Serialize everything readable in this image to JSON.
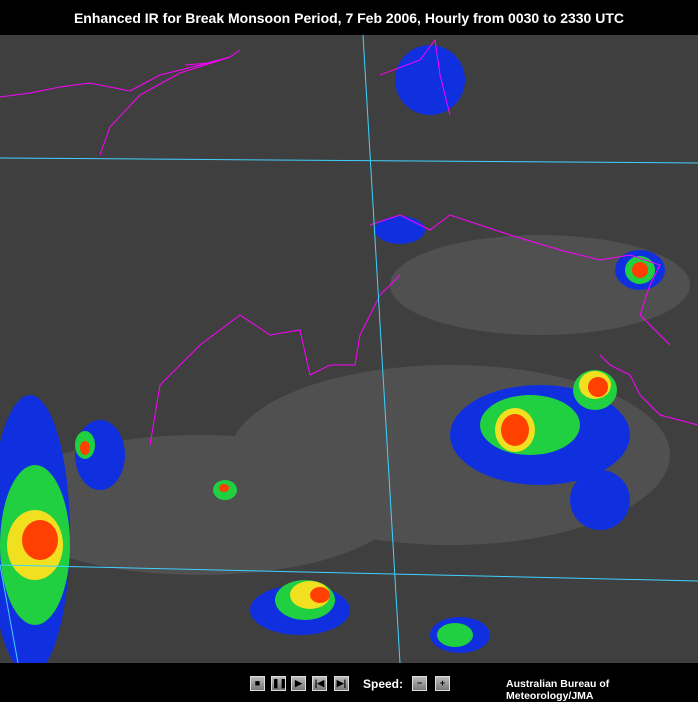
{
  "title": "Enhanced IR for Break Monsoon Period, 7 Feb 2006, Hourly from 0030 to 2330 UTC",
  "controls": {
    "buttons": [
      {
        "name": "stop",
        "icon": "stop-icon",
        "glyph": "■"
      },
      {
        "name": "pause",
        "icon": "pause-icon",
        "glyph": "❚❚"
      },
      {
        "name": "play",
        "icon": "play-icon",
        "glyph": "▶"
      },
      {
        "name": "first",
        "icon": "skip-back-icon",
        "glyph": "|◀"
      },
      {
        "name": "last",
        "icon": "skip-forward-icon",
        "glyph": "▶|"
      }
    ],
    "speed_label": "Speed:",
    "speed_minus": "−",
    "speed_plus": "+"
  },
  "credit": "Australian Bureau of Meteorology/JMA",
  "colors": {
    "background": "#3f3f3f",
    "grid": "#40d0ff",
    "coastline": "#ff00ff",
    "cloud_cold": "#ff4000"
  }
}
